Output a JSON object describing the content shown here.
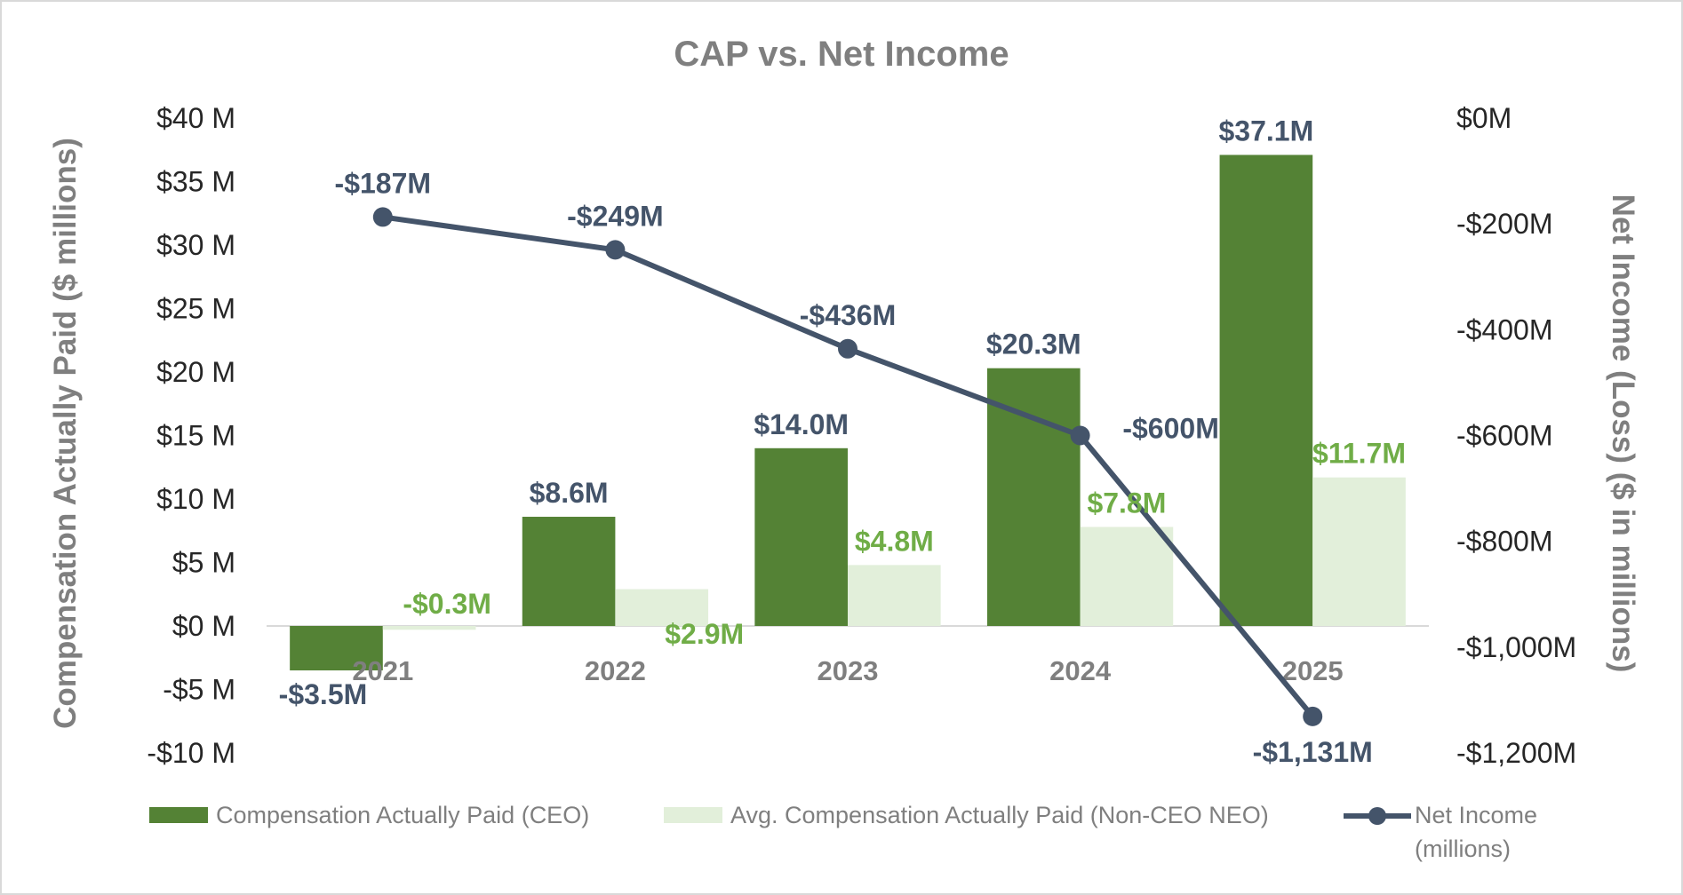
{
  "chart_data": {
    "type": "bar",
    "title": "CAP vs. Net Income",
    "categories": [
      "2021",
      "2022",
      "2023",
      "2024",
      "2025"
    ],
    "ylabel": "Compensation Actually Paid ($ millions)",
    "y2label": "Net Income (Loss) ($ in millions)",
    "ylim": [
      -10,
      40
    ],
    "y_ticks": [
      40,
      35,
      30,
      25,
      20,
      15,
      10,
      5,
      0,
      -5,
      -10
    ],
    "y_tick_labels": [
      "$40 M",
      "$35 M",
      "$30 M",
      "$25 M",
      "$20 M",
      "$15 M",
      "$10 M",
      "$5 M",
      "$0 M",
      "-$5 M",
      "-$10 M"
    ],
    "y2lim": [
      -1200,
      0
    ],
    "y2_ticks": [
      0,
      -200,
      -400,
      -600,
      -800,
      -1000,
      -1200
    ],
    "y2_tick_labels": [
      "$0M",
      "-$200M",
      "-$400M",
      "-$600M",
      "-$800M",
      "-$1,000M",
      "-$1,200M"
    ],
    "series": [
      {
        "name": "Compensation Actually Paid (CEO)",
        "kind": "bar",
        "axis": "left",
        "color": "#548235",
        "label_color": "#44546a",
        "values": [
          -3.5,
          8.6,
          14.0,
          20.3,
          37.1
        ],
        "labels": [
          "-$3.5M",
          "$8.6M",
          "$14.0M",
          "$20.3M",
          "$37.1M"
        ]
      },
      {
        "name": "Avg. Compensation Actually Paid (Non-CEO NEO)",
        "kind": "bar",
        "axis": "left",
        "color": "#e2efda",
        "label_color": "#70ad47",
        "values": [
          -0.3,
          2.9,
          4.8,
          7.8,
          11.7
        ],
        "labels": [
          "-$0.3M",
          "$2.9M",
          "$4.8M",
          "$7.8M",
          "$11.7M"
        ]
      },
      {
        "name": "Net Income (millions)",
        "legend_line1": "Net Income",
        "legend_line2": "(millions)",
        "kind": "line",
        "axis": "right",
        "color": "#44546a",
        "label_color": "#44546a",
        "values": [
          -187,
          -249,
          -436,
          -600,
          -1131
        ],
        "labels": [
          "-$187M",
          "-$249M",
          "-$436M",
          "-$600M",
          "-$1,131M"
        ]
      }
    ],
    "legend": "bottom",
    "grid": false
  }
}
